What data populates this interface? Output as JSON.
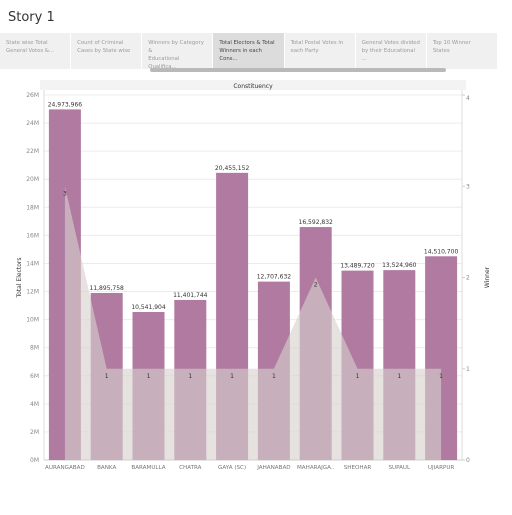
{
  "story": {
    "title": "Story 1"
  },
  "tabs": [
    {
      "label_line1": "State wise Total",
      "label_line2": "General Votes &...",
      "active": false
    },
    {
      "label_line1": "Count of Criminal",
      "label_line2": "Cases by State wise",
      "active": false
    },
    {
      "label_line1": "Winners by Category &",
      "label_line2": "Educational Qualifica...",
      "active": false
    },
    {
      "label_line1": "Total Electors & Total",
      "label_line2": "Winners in each Cons...",
      "active": true
    },
    {
      "label_line1": "Total Postal Votes in",
      "label_line2": "each Party",
      "active": false
    },
    {
      "label_line1": "General Votes divided",
      "label_line2": "by their Educational ...",
      "active": false
    },
    {
      "label_line1": "Top 10 Winner",
      "label_line2": "States",
      "active": false
    }
  ],
  "chart_data": {
    "type": "bar",
    "title": "Constituency",
    "categories": [
      "AURANGABAD",
      "BANKA",
      "BARAMULLA",
      "CHATRA",
      "GAYA (SC)",
      "JAHANABAD",
      "MAHARAJGA..",
      "SHEOHAR",
      "SUPAUL",
      "UJIARPUR"
    ],
    "series": [
      {
        "name": "Total Electors",
        "type": "bar",
        "axis": "left",
        "values": [
          24973966,
          11895758,
          10541904,
          11401744,
          20455152,
          12707632,
          16592832,
          13489720,
          13524960,
          14510700
        ],
        "labels": [
          "24,973,966",
          "11,895,758",
          "10,541,904",
          "11,401,744",
          "20,455,152",
          "12,707,632",
          "16,592,832",
          "13,489,720",
          "13,524,960",
          "14,510,700"
        ]
      },
      {
        "name": "Winner",
        "type": "area",
        "axis": "right",
        "values": [
          3,
          1,
          1,
          1,
          1,
          1,
          2,
          1,
          1,
          1
        ],
        "labels": [
          "3",
          "1",
          "1",
          "1",
          "1",
          "1",
          "2",
          "1",
          "1",
          "1"
        ]
      }
    ],
    "ylabel": "Total Electors",
    "y2label": "Winner",
    "ylim": [
      0,
      26000000
    ],
    "y2lim": [
      0,
      4
    ],
    "yticks": [
      "0M",
      "2M",
      "4M",
      "6M",
      "8M",
      "10M",
      "12M",
      "14M",
      "16M",
      "18M",
      "20M",
      "22M",
      "24M",
      "26M"
    ],
    "y2ticks": [
      "0",
      "1",
      "2",
      "3",
      "4"
    ],
    "grid": true,
    "colors": {
      "bar": "#b07aa1",
      "area": "#d7d0cd"
    }
  }
}
